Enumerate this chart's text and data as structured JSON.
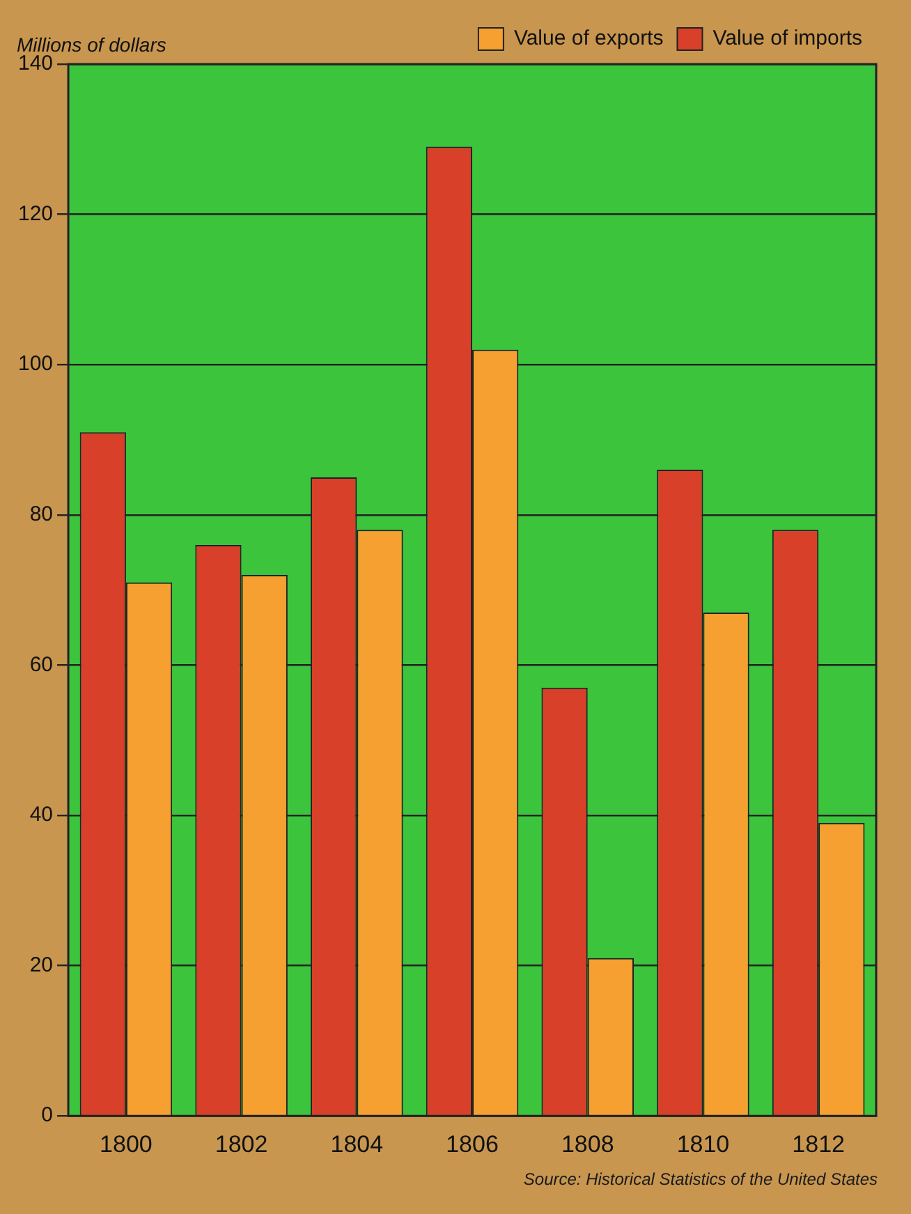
{
  "chart_data": {
    "type": "bar",
    "ylabel": "Millions of dollars",
    "categories": [
      "1800",
      "1802",
      "1804",
      "1806",
      "1808",
      "1810",
      "1812"
    ],
    "series": [
      {
        "name": "Value of exports",
        "color": "#f5a030",
        "values": [
          71,
          72,
          78,
          102,
          21,
          67,
          39
        ]
      },
      {
        "name": "Value of imports",
        "color": "#d8402a",
        "values": [
          91,
          76,
          85,
          129,
          57,
          86,
          78
        ]
      }
    ],
    "ylim": [
      0,
      140
    ],
    "yticks": [
      0,
      20,
      40,
      60,
      80,
      100,
      120,
      140
    ],
    "grid": "y",
    "legend": "top right",
    "annotations": [
      "Source: Historical Statistics of the United States"
    ]
  }
}
